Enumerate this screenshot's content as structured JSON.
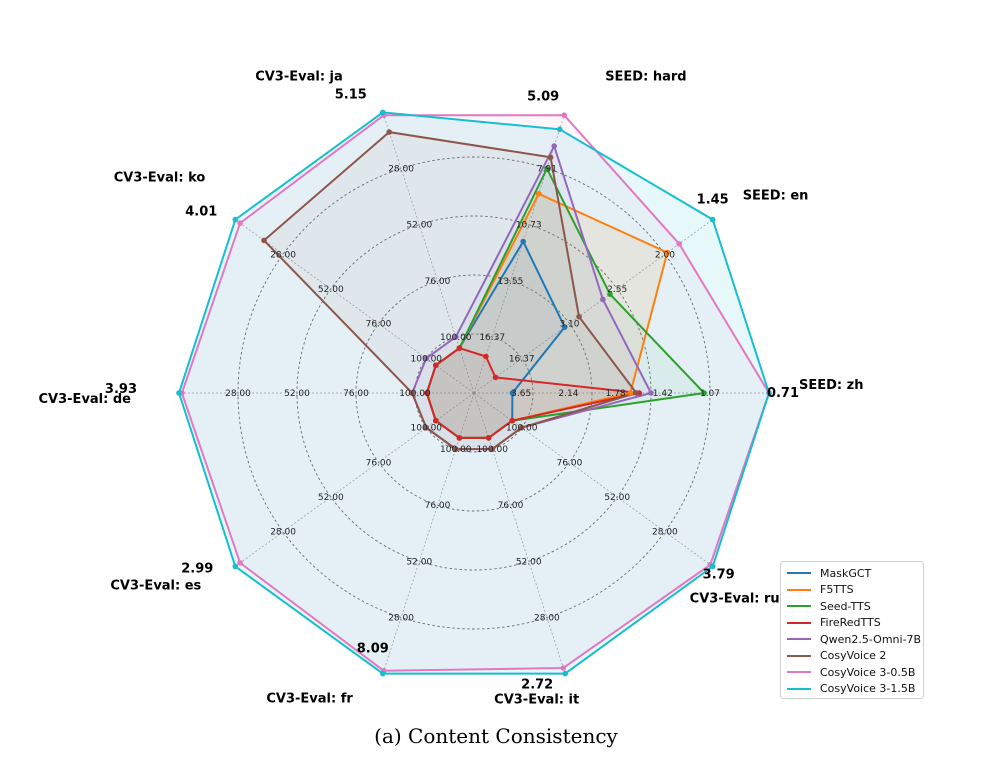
{
  "caption": "(a) Content Consistency",
  "chart_data": {
    "type": "radar",
    "title": "",
    "note": "Per-axis scales are inverted (lower error is plotted farther out); axis-title values are each axis's best score.",
    "axes": [
      {
        "name": "SEED: zh",
        "best": "0.71",
        "ticks": [
          "3.65",
          "2.14",
          "1.78",
          "1.42",
          "1.07"
        ]
      },
      {
        "name": "SEED: en",
        "best": "1.45",
        "ticks": [
          "16.37",
          "3.10",
          "2.55",
          "2.00"
        ]
      },
      {
        "name": "SEED: hard",
        "best": "5.09",
        "ticks": [
          "16.37",
          "13.55",
          "10.73",
          "7.91"
        ]
      },
      {
        "name": "CV3-Eval: ja",
        "best": "5.15",
        "ticks": [
          "100.00",
          "76.00",
          "52.00",
          "28.00"
        ]
      },
      {
        "name": "CV3-Eval: ko",
        "best": "4.01",
        "ticks": [
          "100.00",
          "76.00",
          "52.00",
          "28.00"
        ]
      },
      {
        "name": "CV3-Eval: de",
        "best": "3.93",
        "ticks": [
          "100.00",
          "76.00",
          "52.00",
          "28.00"
        ]
      },
      {
        "name": "CV3-Eval: es",
        "best": "2.99",
        "ticks": [
          "100.00",
          "76.00",
          "52.00",
          "28.00"
        ]
      },
      {
        "name": "CV3-Eval: fr",
        "best": "8.09",
        "ticks": [
          "100.00",
          "76.00",
          "52.00",
          "28.00"
        ]
      },
      {
        "name": "CV3-Eval: it",
        "best": "2.72",
        "ticks": [
          "100.00",
          "76.00",
          "52.00",
          "28.00"
        ]
      },
      {
        "name": "CV3-Eval: ru",
        "best": "3.79",
        "ticks": [
          "100.00",
          "76.00",
          "52.00",
          "28.00"
        ]
      }
    ],
    "rmax": 1.0,
    "series": [
      {
        "name": "MaskGCT",
        "color": "#1f77b4",
        "fill": false,
        "values": [
          0.13,
          0.38,
          0.54,
          0.16,
          0.16,
          0.16,
          0.16,
          0.16,
          0.16,
          0.16
        ]
      },
      {
        "name": "F5TTS",
        "color": "#ff7f0e",
        "fill": true,
        "values": [
          0.53,
          0.81,
          0.71,
          0.16,
          0.16,
          0.16,
          0.16,
          0.16,
          0.16,
          0.16
        ]
      },
      {
        "name": "Seed-TTS",
        "color": "#2ca02c",
        "fill": false,
        "values": [
          0.78,
          0.57,
          0.8,
          0.16,
          0.16,
          0.16,
          0.16,
          0.16,
          0.16,
          0.16
        ]
      },
      {
        "name": "FireRedTTS",
        "color": "#d62728",
        "fill": false,
        "values": [
          0.56,
          0.09,
          0.13,
          0.16,
          0.16,
          0.16,
          0.16,
          0.16,
          0.16,
          0.16
        ]
      },
      {
        "name": "Qwen2.5-Omni-7B",
        "color": "#9467bd",
        "fill": false,
        "values": [
          0.6,
          0.54,
          0.88,
          0.2,
          0.2,
          0.21,
          0.2,
          0.2,
          0.2,
          0.2
        ]
      },
      {
        "name": "CosyVoice 2",
        "color": "#8c564b",
        "fill": false,
        "values": [
          0.55,
          0.44,
          0.84,
          0.93,
          0.88,
          0.21,
          0.2,
          0.2,
          0.2,
          0.2
        ]
      },
      {
        "name": "CosyVoice 3-0.5B",
        "color": "#e377c2",
        "fill": false,
        "values": [
          1.0,
          0.86,
          0.99,
          0.99,
          0.98,
          0.99,
          0.98,
          0.99,
          0.98,
          0.99
        ]
      },
      {
        "name": "CosyVoice 3-1.5B",
        "color": "#17becf",
        "fill": true,
        "values": [
          1.0,
          1.0,
          0.94,
          1.0,
          1.0,
          1.0,
          1.0,
          1.0,
          1.0,
          1.0
        ]
      }
    ]
  }
}
